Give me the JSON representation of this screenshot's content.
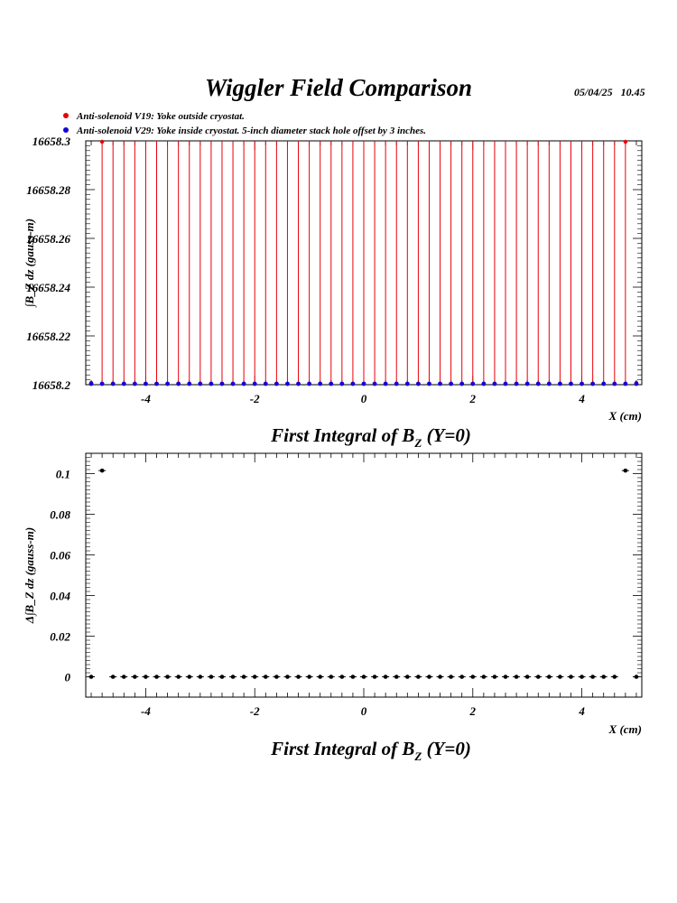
{
  "header": {
    "title": "Wiggler Field Comparison",
    "timestamp": "05/04/25   10.45"
  },
  "legend": [
    {
      "label": "Anti-solenoid V19: Yoke outside cryostat.",
      "color": "#e8000b"
    },
    {
      "label": "Anti-solenoid V29: Yoke inside cryostat. 5-inch diameter stack hole offset by 3 inches.",
      "color": "#1400d6"
    }
  ],
  "chart_data": [
    {
      "type": "scatter",
      "title": "First Integral of B_Z (Y=0)",
      "title_parts": {
        "main": "First Integral of B",
        "sub": "Z",
        "tail": " (Y=0)"
      },
      "xlabel": "X (cm)",
      "ylabel": "∫B_Z dz  (gauss-m)",
      "xlim": [
        -5.1,
        5.1
      ],
      "ylim": [
        16658.2,
        16658.3
      ],
      "xticks": [
        -4,
        -2,
        0,
        2,
        4
      ],
      "xtick_labels": [
        "-4",
        "-2",
        "0",
        "2",
        "4"
      ],
      "yticks": [
        16658.2,
        16658.22,
        16658.24,
        16658.26,
        16658.28,
        16658.3
      ],
      "ytick_labels": [
        "16658.2",
        "16658.22",
        "16658.24",
        "16658.26",
        "16658.28",
        "16658.3"
      ],
      "grid": false,
      "legend_position": "top-left",
      "series": [
        {
          "name": "Anti-solenoid V19: Yoke outside cryostat.",
          "color": "#e8000b",
          "x": [
            -5.0,
            -4.8,
            -4.6,
            -4.4,
            -4.2,
            -4.0,
            -3.8,
            -3.6,
            -3.4,
            -3.2,
            -3.0,
            -2.8,
            -2.6,
            -2.4,
            -2.2,
            -2.0,
            -1.8,
            -1.6,
            -1.4,
            -1.2,
            -1.0,
            -0.8,
            -0.6,
            -0.4,
            -0.2,
            0.0,
            0.2,
            0.4,
            0.6,
            0.8,
            1.0,
            1.2,
            1.4,
            1.6,
            1.8,
            2.0,
            2.2,
            2.4,
            2.6,
            2.8,
            3.0,
            3.2,
            3.4,
            3.6,
            3.8,
            4.0,
            4.2,
            4.4,
            4.6,
            4.8,
            5.0
          ],
          "y": [
            16658.2,
            16658.3,
            16658.3,
            16658.3,
            16658.3,
            16658.3,
            16658.3,
            16658.3,
            16658.3,
            16658.3,
            16658.3,
            16658.3,
            16658.3,
            16658.3,
            16658.3,
            16658.3,
            16658.3,
            16658.3,
            16658.3,
            16658.3,
            16658.3,
            16658.3,
            16658.3,
            16658.3,
            16658.3,
            16658.3,
            16658.3,
            16658.3,
            16658.3,
            16658.3,
            16658.3,
            16658.3,
            16658.3,
            16658.3,
            16658.3,
            16658.3,
            16658.3,
            16658.3,
            16658.3,
            16658.3,
            16658.3,
            16658.3,
            16658.3,
            16658.3,
            16658.3,
            16658.3,
            16658.3,
            16658.3,
            16658.3,
            16658.3,
            16658.2
          ]
        },
        {
          "name": "Anti-solenoid V29: Yoke inside cryostat. 5-inch diameter stack hole offset by 3 inches.",
          "color": "#1400d6",
          "x": [
            -5.0,
            -4.8,
            -4.6,
            -4.4,
            -4.2,
            -4.0,
            -3.8,
            -3.6,
            -3.4,
            -3.2,
            -3.0,
            -2.8,
            -2.6,
            -2.4,
            -2.2,
            -2.0,
            -1.8,
            -1.6,
            -1.4,
            -1.2,
            -1.0,
            -0.8,
            -0.6,
            -0.4,
            -0.2,
            0.0,
            0.2,
            0.4,
            0.6,
            0.8,
            1.0,
            1.2,
            1.4,
            1.6,
            1.8,
            2.0,
            2.2,
            2.4,
            2.6,
            2.8,
            3.0,
            3.2,
            3.4,
            3.6,
            3.8,
            4.0,
            4.2,
            4.4,
            4.6,
            4.8,
            5.0
          ],
          "y": [
            16658.2,
            16658.2,
            16658.2,
            16658.2,
            16658.2,
            16658.2,
            16658.2,
            16658.2,
            16658.2,
            16658.2,
            16658.2,
            16658.2,
            16658.2,
            16658.2,
            16658.2,
            16658.2,
            16658.2,
            16658.2,
            16658.2,
            16658.2,
            16658.2,
            16658.2,
            16658.2,
            16658.2,
            16658.2,
            16658.2,
            16658.2,
            16658.2,
            16658.2,
            16658.2,
            16658.2,
            16658.2,
            16658.2,
            16658.2,
            16658.2,
            16658.2,
            16658.2,
            16658.2,
            16658.2,
            16658.2,
            16658.2,
            16658.2,
            16658.2,
            16658.2,
            16658.2,
            16658.2,
            16658.2,
            16658.2,
            16658.2,
            16658.2,
            16658.2
          ]
        }
      ]
    },
    {
      "type": "scatter",
      "title": "First Integral of B_Z (Y=0)",
      "title_parts": {
        "main": "First Integral of B",
        "sub": "Z",
        "tail": " (Y=0)"
      },
      "xlabel": "X (cm)",
      "ylabel": "Δ∫B_Z dz  (gauss-m)",
      "xlim": [
        -5.1,
        5.1
      ],
      "ylim": [
        -0.01,
        0.11
      ],
      "xticks": [
        -4,
        -2,
        0,
        2,
        4
      ],
      "xtick_labels": [
        "-4",
        "-2",
        "0",
        "2",
        "4"
      ],
      "yticks": [
        0,
        0.02,
        0.04,
        0.06,
        0.08,
        0.1
      ],
      "ytick_labels": [
        "0",
        "0.02",
        "0.04",
        "0.06",
        "0.08",
        "0.1"
      ],
      "grid": false,
      "series": [
        {
          "color": "#000000",
          "x": [
            -5.0,
            -4.8,
            -4.6,
            -4.4,
            -4.2,
            -4.0,
            -3.8,
            -3.6,
            -3.4,
            -3.2,
            -3.0,
            -2.8,
            -2.6,
            -2.4,
            -2.2,
            -2.0,
            -1.8,
            -1.6,
            -1.4,
            -1.2,
            -1.0,
            -0.8,
            -0.6,
            -0.4,
            -0.2,
            0.0,
            0.2,
            0.4,
            0.6,
            0.8,
            1.0,
            1.2,
            1.4,
            1.6,
            1.8,
            2.0,
            2.2,
            2.4,
            2.6,
            2.8,
            3.0,
            3.2,
            3.4,
            3.6,
            3.8,
            4.0,
            4.2,
            4.4,
            4.6,
            4.8,
            5.0
          ],
          "y": [
            0,
            0.1015,
            0,
            0,
            0,
            0,
            0,
            0,
            0,
            0,
            0,
            0,
            0,
            0,
            0,
            0,
            0,
            0,
            0,
            0,
            0,
            0,
            0,
            0,
            0,
            0,
            0,
            0,
            0,
            0,
            0,
            0,
            0,
            0,
            0,
            0,
            0,
            0,
            0,
            0,
            0,
            0,
            0,
            0,
            0,
            0,
            0,
            0,
            0,
            0.1015,
            0
          ]
        }
      ]
    }
  ]
}
